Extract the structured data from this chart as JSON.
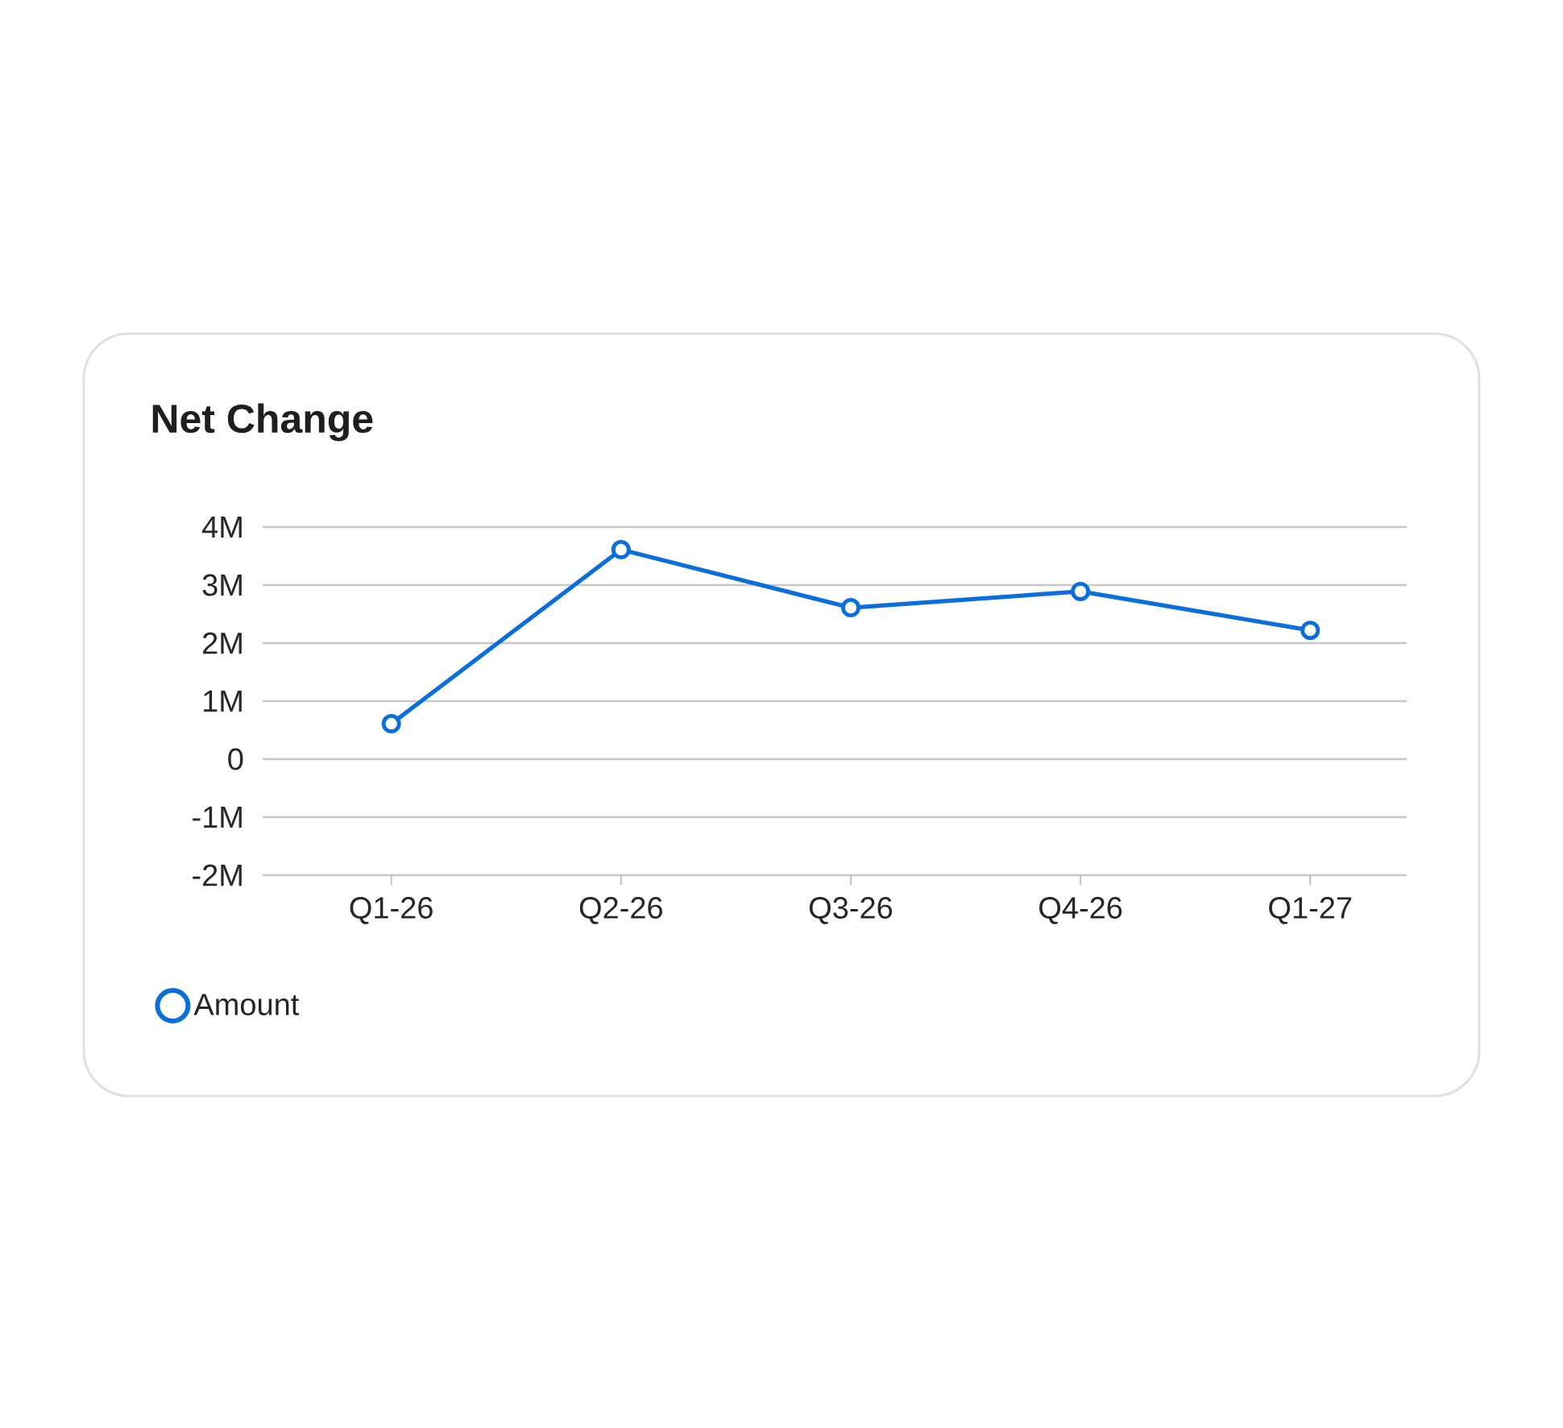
{
  "chart_data": {
    "type": "line",
    "title": "Net Change",
    "categories": [
      "Q1-26",
      "Q2-26",
      "Q3-26",
      "Q4-26",
      "Q1-27"
    ],
    "series": [
      {
        "name": "Amount",
        "color": "#0a6fdc",
        "values": [
          610000,
          3610000,
          2610000,
          2890000,
          2220000
        ]
      }
    ],
    "ylim": [
      -2000000,
      4000000
    ],
    "yticks": [
      {
        "value": -2000000,
        "label": "-2M"
      },
      {
        "value": -1000000,
        "label": "-1M"
      },
      {
        "value": 0,
        "label": "0"
      },
      {
        "value": 1000000,
        "label": "1M"
      },
      {
        "value": 2000000,
        "label": "2M"
      },
      {
        "value": 3000000,
        "label": "3M"
      },
      {
        "value": 4000000,
        "label": "4M"
      }
    ],
    "grid": "y",
    "legend": "bottom left",
    "marker": "circle",
    "line_style": "solid"
  }
}
